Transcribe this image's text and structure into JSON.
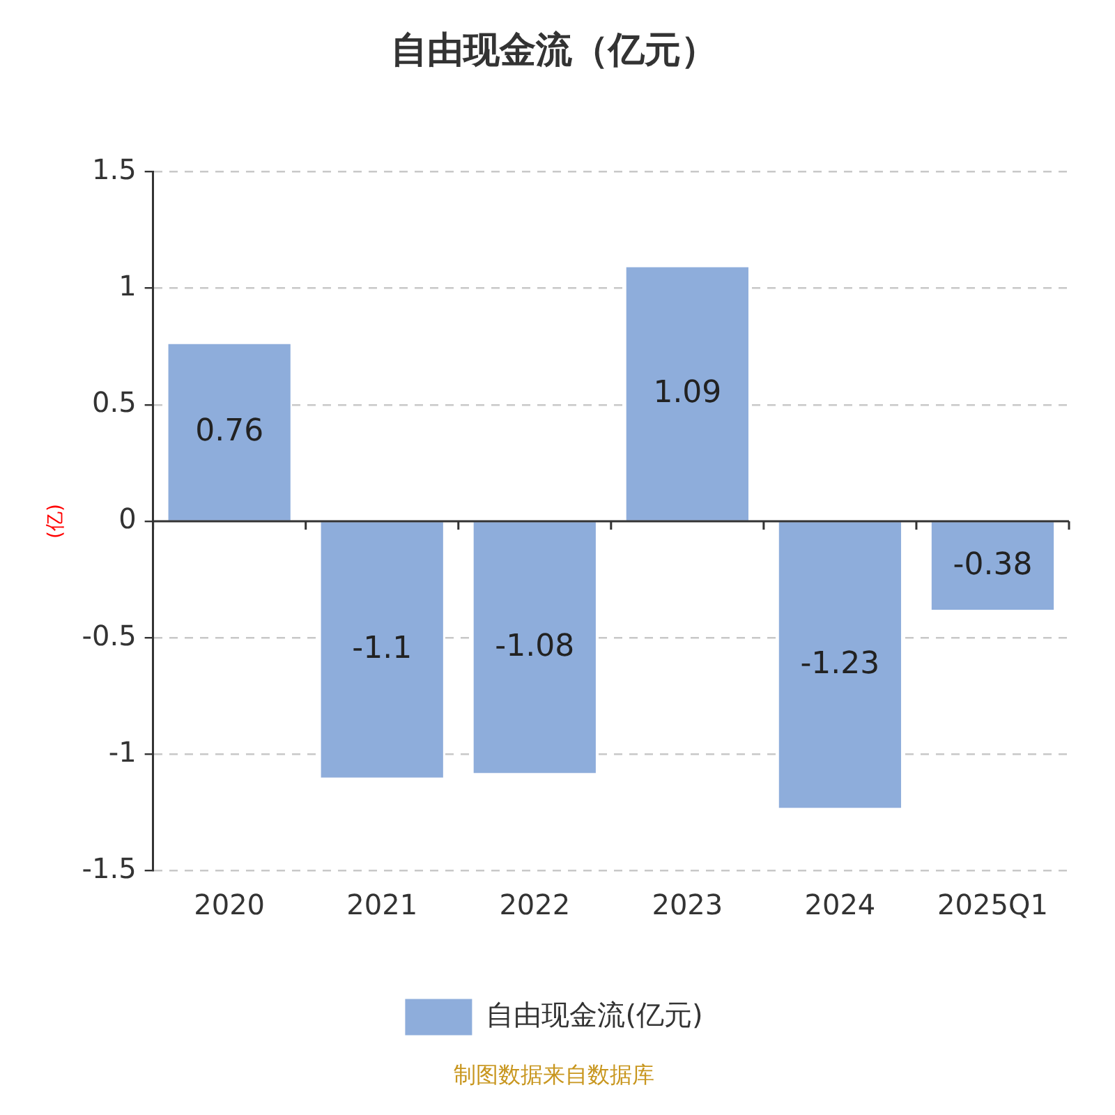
{
  "chart_data": {
    "type": "bar",
    "title": "自由现金流（亿元）",
    "ylabel": "(亿)",
    "categories": [
      "2020",
      "2021",
      "2022",
      "2023",
      "2024",
      "2025Q1"
    ],
    "series": [
      {
        "name": "自由现金流(亿元)",
        "color": "#8eaddb",
        "values": [
          0.76,
          -1.1,
          -1.08,
          1.09,
          -1.23,
          -0.38
        ]
      }
    ],
    "ylim": [
      -1.5,
      1.5
    ],
    "yticks": [
      -1.5,
      -1,
      -0.5,
      0,
      0.5,
      1,
      1.5
    ],
    "grid": "y",
    "legend": "bottom",
    "data_labels": true,
    "annotations": [
      "制图数据来自数据库"
    ]
  }
}
